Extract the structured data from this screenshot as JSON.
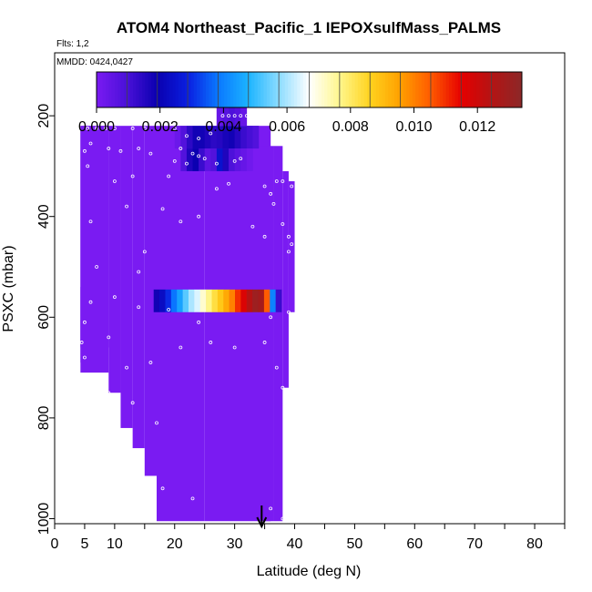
{
  "chart_data": {
    "type": "heatmap",
    "title": "ATOM4 Northeast_Pacific_1 IEPOXsulfMass_PALMS",
    "flights_label": "Flts: 1,2",
    "dates_label": "MMDD: 0424,0427",
    "xlabel": "Latitude (deg N)",
    "ylabel": "PSXC (mbar)",
    "xlim": [
      0,
      85
    ],
    "ylim": [
      1010,
      75
    ],
    "x_ticks": [
      0,
      5,
      10,
      20,
      30,
      40,
      50,
      60,
      70,
      80
    ],
    "y_ticks": [
      200,
      400,
      600,
      800,
      1000
    ],
    "y_reversed": true,
    "colorbar": {
      "min": 0.0,
      "max": 0.0134,
      "ticks": [
        "0.000",
        "0.002",
        "0.004",
        "0.006",
        "0.008",
        "0.010",
        "0.012"
      ],
      "colors": [
        "#7a1bf2",
        "#4a10d8",
        "#0a00b0",
        "#0a1ee0",
        "#0a78ff",
        "#1cb4ff",
        "#8cdcff",
        "#ffffff",
        "#fff78c",
        "#ffd21e",
        "#ffa000",
        "#ff5a00",
        "#e60000",
        "#b41414",
        "#8c2828"
      ]
    },
    "arrow_latitude": 34.5,
    "background_value": 0.0,
    "filled_columns": [
      {
        "lat0": 4.3,
        "lat1": 9,
        "p_top": 220,
        "p_bot": 660
      },
      {
        "lat0": 4.3,
        "lat1": 5,
        "p_top": 540,
        "p_bot": 690
      },
      {
        "lat0": 4.3,
        "lat1": 9,
        "p_top": 220,
        "p_bot": 710
      },
      {
        "lat0": 9,
        "lat1": 11,
        "p_top": 220,
        "p_bot": 750
      },
      {
        "lat0": 11,
        "lat1": 13,
        "p_top": 220,
        "p_bot": 820
      },
      {
        "lat0": 13,
        "lat1": 15,
        "p_top": 220,
        "p_bot": 860
      },
      {
        "lat0": 15,
        "lat1": 17,
        "p_top": 220,
        "p_bot": 915
      },
      {
        "lat0": 17,
        "lat1": 25,
        "p_top": 220,
        "p_bot": 1005
      },
      {
        "lat0": 25,
        "lat1": 36,
        "p_top": 220,
        "p_bot": 1005
      },
      {
        "lat0": 27,
        "lat1": 32,
        "p_top": 170,
        "p_bot": 220
      },
      {
        "lat0": 32,
        "lat1": 34,
        "p_top": 220,
        "p_bot": 260
      },
      {
        "lat0": 34,
        "lat1": 36.5,
        "p_top": 260,
        "p_bot": 1005
      },
      {
        "lat0": 36.5,
        "lat1": 38,
        "p_top": 260,
        "p_bot": 1005
      },
      {
        "lat0": 38,
        "lat1": 39,
        "p_top": 310,
        "p_bot": 740
      },
      {
        "lat0": 39,
        "lat1": 40,
        "p_top": 330,
        "p_bot": 590
      }
    ],
    "elevated_bands": [
      {
        "p_top": 220,
        "p_bot": 265,
        "lat0": 20,
        "lat1": 34,
        "values": [
          0.0003,
          0.0008,
          0.0014,
          0.0018,
          0.0018,
          0.0016,
          0.0014,
          0.0015,
          0.0017,
          0.0018,
          0.0015,
          0.0012,
          0.001,
          0.0008
        ]
      },
      {
        "p_top": 265,
        "p_bot": 310,
        "lat0": 21,
        "lat1": 26,
        "values": [
          0.0008,
          0.0016,
          0.0019,
          0.0012,
          0.0006
        ]
      },
      {
        "p_top": 265,
        "p_bot": 310,
        "lat0": 26,
        "lat1": 33,
        "values": [
          0.0008,
          0.0025,
          0.0016,
          0.0009,
          0.0006,
          0.0004,
          0.0002
        ]
      },
      {
        "p_top": 180,
        "p_bot": 220,
        "lat0": 27,
        "lat1": 32,
        "values": [
          0.0004,
          0.0007,
          0.0009,
          0.0007,
          0.0004
        ]
      },
      {
        "p_top": 545,
        "p_bot": 590,
        "lat0": 16.5,
        "lat1": 37.8,
        "values": [
          0.0018,
          0.0023,
          0.003,
          0.0038,
          0.0045,
          0.0053,
          0.006,
          0.0064,
          0.0071,
          0.0077,
          0.0083,
          0.0088,
          0.0094,
          0.01,
          0.011,
          0.0117,
          0.0124,
          0.013,
          0.0128,
          0.0105,
          0.004,
          0.0012
        ]
      }
    ],
    "sample_points": [
      [
        5.5,
        225
      ],
      [
        7,
        225
      ],
      [
        8.5,
        225
      ],
      [
        10,
        225
      ],
      [
        13,
        225
      ],
      [
        15,
        225
      ],
      [
        20,
        225
      ],
      [
        5,
        270
      ],
      [
        6,
        255
      ],
      [
        9,
        265
      ],
      [
        11,
        270
      ],
      [
        14,
        265
      ],
      [
        16,
        275
      ],
      [
        5.5,
        300
      ],
      [
        10,
        330
      ],
      [
        13,
        320
      ],
      [
        19,
        320
      ],
      [
        27,
        345
      ],
      [
        29,
        335
      ],
      [
        35,
        340
      ],
      [
        37,
        330
      ],
      [
        36,
        355
      ],
      [
        38,
        330
      ],
      [
        39.5,
        320
      ],
      [
        39.5,
        340
      ],
      [
        36.5,
        375
      ],
      [
        6,
        410
      ],
      [
        12,
        380
      ],
      [
        18,
        385
      ],
      [
        21,
        410
      ],
      [
        24,
        400
      ],
      [
        33,
        420
      ],
      [
        35,
        440
      ],
      [
        38,
        415
      ],
      [
        39,
        440
      ],
      [
        39.5,
        455
      ],
      [
        39,
        470
      ],
      [
        15,
        470
      ],
      [
        7,
        500
      ],
      [
        14,
        510
      ],
      [
        6,
        570
      ],
      [
        5,
        610
      ],
      [
        10,
        560
      ],
      [
        14,
        580
      ],
      [
        19,
        585
      ],
      [
        24,
        610
      ],
      [
        36,
        600
      ],
      [
        39,
        590
      ],
      [
        4.5,
        650
      ],
      [
        9,
        640
      ],
      [
        5,
        680
      ],
      [
        12,
        700
      ],
      [
        16,
        690
      ],
      [
        21,
        660
      ],
      [
        26,
        650
      ],
      [
        30,
        660
      ],
      [
        35,
        650
      ],
      [
        37,
        700
      ],
      [
        38,
        740
      ],
      [
        9,
        750
      ],
      [
        13,
        770
      ],
      [
        17,
        810
      ],
      [
        13,
        900
      ],
      [
        18,
        940
      ],
      [
        23,
        960
      ],
      [
        36,
        980
      ],
      [
        38,
        1000
      ],
      [
        22,
        240
      ],
      [
        24,
        245
      ],
      [
        26,
        235
      ],
      [
        28,
        200
      ],
      [
        29,
        200
      ],
      [
        30,
        200
      ],
      [
        31,
        200
      ],
      [
        32,
        200
      ],
      [
        21,
        265
      ],
      [
        23,
        275
      ],
      [
        24,
        280
      ],
      [
        25,
        285
      ],
      [
        27,
        295
      ],
      [
        30,
        290
      ],
      [
        31,
        285
      ],
      [
        20,
        290
      ],
      [
        22,
        295
      ]
    ]
  }
}
